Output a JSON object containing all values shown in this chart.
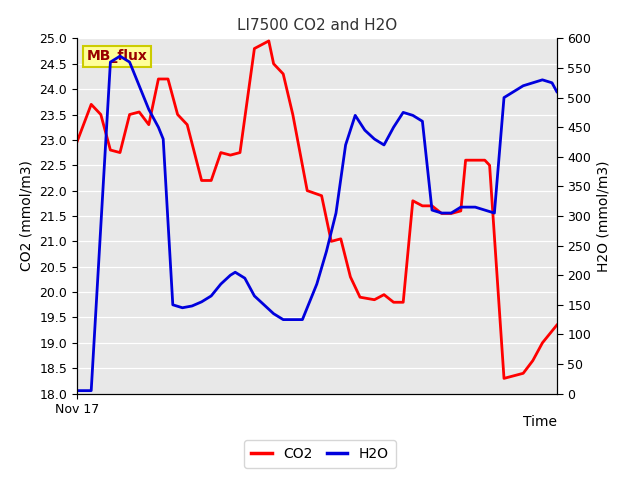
{
  "title": "LI7500 CO2 and H2O",
  "xlabel": "Time",
  "ylabel_left": "CO2 (mmol/m3)",
  "ylabel_right": "H2O (mmol/m3)",
  "x_label_start": "Nov 17",
  "co2_color": "#ff0000",
  "h2o_color": "#0000dd",
  "background_color": "#e8e8e8",
  "fig_background": "#ffffff",
  "ylim_left": [
    18.0,
    25.0
  ],
  "ylim_right": [
    0,
    600
  ],
  "yticks_left": [
    18.0,
    18.5,
    19.0,
    19.5,
    20.0,
    20.5,
    21.0,
    21.5,
    22.0,
    22.5,
    23.0,
    23.5,
    24.0,
    24.5,
    25.0
  ],
  "yticks_right": [
    0,
    50,
    100,
    150,
    200,
    250,
    300,
    350,
    400,
    450,
    500,
    550,
    600
  ],
  "co2_x": [
    0,
    3,
    5,
    7,
    9,
    11,
    13,
    15,
    17,
    19,
    21,
    23,
    26,
    28,
    30,
    32,
    34,
    37,
    40,
    41,
    43,
    45,
    48,
    51,
    53,
    55,
    57,
    59,
    62,
    64,
    66,
    68,
    70,
    72,
    74,
    76,
    78,
    80,
    81,
    83,
    85,
    86,
    89,
    91,
    93,
    95,
    97,
    100
  ],
  "co2_y": [
    22.95,
    23.7,
    23.5,
    22.8,
    22.75,
    23.5,
    23.55,
    23.3,
    24.2,
    24.2,
    23.5,
    23.3,
    22.2,
    22.2,
    22.75,
    22.7,
    22.75,
    24.8,
    24.95,
    24.5,
    24.3,
    23.5,
    22.0,
    21.9,
    21.0,
    21.05,
    20.3,
    19.9,
    19.85,
    19.95,
    19.8,
    19.8,
    21.8,
    21.7,
    21.7,
    21.55,
    21.55,
    21.6,
    22.6,
    22.6,
    22.6,
    22.5,
    18.3,
    18.35,
    18.4,
    18.65,
    19.0,
    19.35
  ],
  "h2o_x": [
    0,
    3,
    7,
    9,
    11,
    13,
    15,
    17,
    18,
    20,
    22,
    24,
    26,
    28,
    30,
    32,
    33,
    35,
    37,
    39,
    41,
    43,
    45,
    47,
    50,
    52,
    54,
    56,
    58,
    60,
    62,
    64,
    66,
    68,
    70,
    72,
    74,
    76,
    78,
    80,
    83,
    85,
    87,
    89,
    91,
    93,
    95,
    97,
    99,
    100
  ],
  "h2o_y": [
    5,
    5,
    560,
    570,
    560,
    520,
    480,
    450,
    430,
    150,
    145,
    148,
    155,
    165,
    185,
    200,
    205,
    195,
    165,
    150,
    135,
    125,
    125,
    125,
    185,
    240,
    305,
    420,
    470,
    445,
    430,
    420,
    450,
    475,
    470,
    460,
    310,
    305,
    305,
    315,
    315,
    310,
    305,
    500,
    510,
    520,
    525,
    530,
    525,
    510
  ],
  "legend_entries": [
    "CO2",
    "H2O"
  ],
  "annotation_text": "MB_flux",
  "annotation_bbox_facecolor": "#ffff99",
  "annotation_bbox_edgecolor": "#cccc00",
  "annotation_text_color": "#990000",
  "linewidth": 2.0,
  "title_color": "#333333",
  "title_fontsize": 11,
  "axis_fontsize": 10,
  "tick_fontsize": 9,
  "legend_fontsize": 10
}
